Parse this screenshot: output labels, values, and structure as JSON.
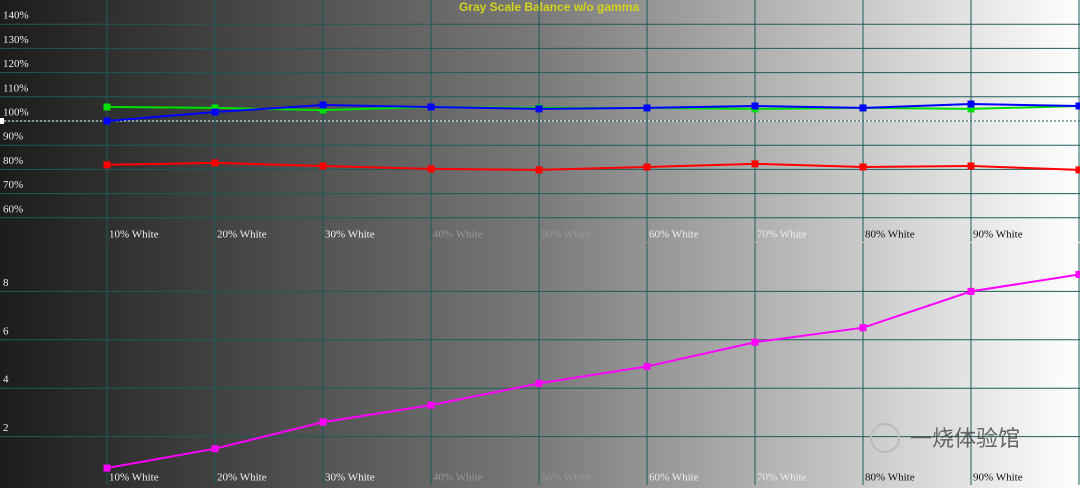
{
  "chart_data": [
    {
      "type": "line",
      "title": "Gray Scale Balance w/o gamma",
      "categories": [
        "10% White",
        "20% White",
        "30% White",
        "40% White",
        "50% White",
        "60% White",
        "70% White",
        "80% White",
        "90% White",
        null
      ],
      "series": [
        {
          "color": "#00e000",
          "values": [
            105.8,
            105.4,
            104.5,
            105.8,
            105.4,
            105.4,
            105,
            105.4,
            105,
            106.2
          ]
        },
        {
          "color": "#0000ff",
          "values": [
            100,
            103.7,
            106.6,
            105.8,
            105,
            105.4,
            106.2,
            105.4,
            107,
            106.2
          ]
        },
        {
          "color": "#ff0000",
          "values": [
            81.9,
            82.7,
            81.4,
            80.2,
            79.8,
            81,
            82.3,
            81,
            81.4,
            79.8
          ]
        }
      ],
      "ylim": [
        50,
        150
      ],
      "yticks": [
        {
          "value": 60,
          "label": "60%"
        },
        {
          "value": 70,
          "label": "70%"
        },
        {
          "value": 80,
          "label": "80%"
        },
        {
          "value": 90,
          "label": "90%"
        },
        {
          "value": 100,
          "label": "100%"
        },
        {
          "value": 110,
          "label": "110%"
        },
        {
          "value": 120,
          "label": "120%"
        },
        {
          "value": 130,
          "label": "130%"
        },
        {
          "value": 140,
          "label": "140%"
        }
      ],
      "reference_line": 100,
      "grid": true
    },
    {
      "type": "line",
      "categories": [
        "10% White",
        "20% White",
        "30% White",
        "40% White",
        "50% White",
        "60% White",
        "70% White",
        "80% White",
        "90% White",
        null
      ],
      "series": [
        {
          "color": "#ff00ff",
          "values": [
            0.7,
            1.5,
            2.6,
            3.3,
            4.2,
            4.9,
            5.9,
            6.5,
            8.0,
            8.7
          ]
        }
      ],
      "ylim": [
        0,
        10
      ],
      "yticks": [
        2,
        4,
        6,
        8
      ],
      "grid": true,
      "watermark": "一烧体验馆"
    }
  ]
}
